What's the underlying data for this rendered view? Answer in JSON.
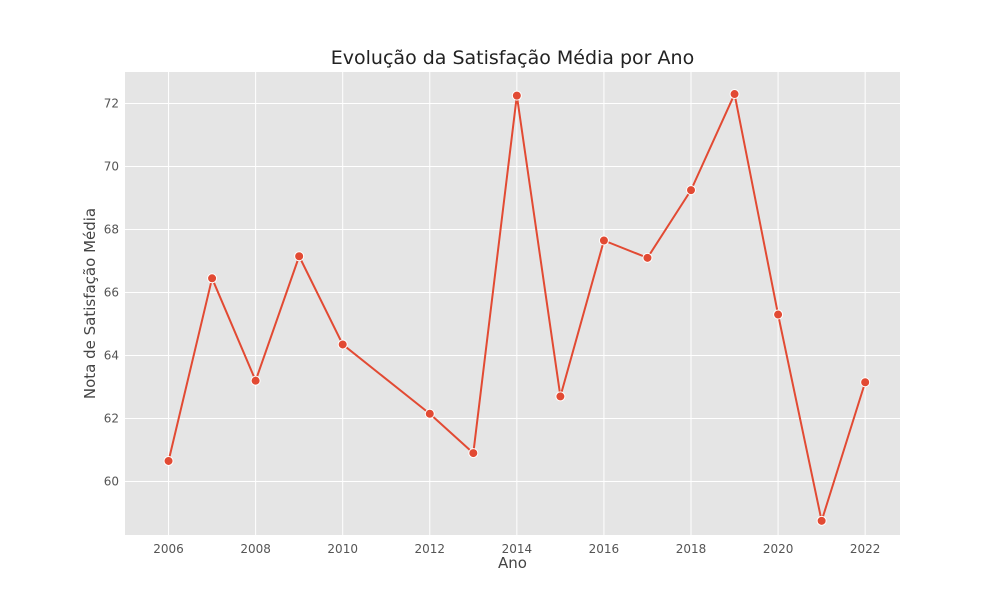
{
  "chart_data": {
    "type": "line",
    "title": "Evolução da Satisfação Média por Ano",
    "xlabel": "Ano",
    "ylabel": "Nota de Satisfação Média",
    "xlim": [
      2005,
      2022.8
    ],
    "ylim": [
      58.3,
      73.0
    ],
    "x_ticks": [
      2006,
      2008,
      2010,
      2012,
      2014,
      2016,
      2018,
      2020,
      2022
    ],
    "y_ticks": [
      60,
      62,
      64,
      66,
      68,
      70,
      72
    ],
    "grid": true,
    "legend": "none",
    "series": [
      {
        "color": "#e24a33",
        "marker": "circle",
        "x": [
          2006,
          2007,
          2008,
          2009,
          2010,
          2012,
          2013,
          2014,
          2015,
          2016,
          2017,
          2018,
          2019,
          2020,
          2021,
          2022
        ],
        "y": [
          60.65,
          66.45,
          63.2,
          67.15,
          64.35,
          62.15,
          60.9,
          72.25,
          62.7,
          67.65,
          67.1,
          69.25,
          72.3,
          65.3,
          58.75,
          63.15
        ]
      }
    ],
    "colors": {
      "plot_background": "#e5e5e5",
      "grid": "#ffffff",
      "line": "#e24a33"
    }
  }
}
